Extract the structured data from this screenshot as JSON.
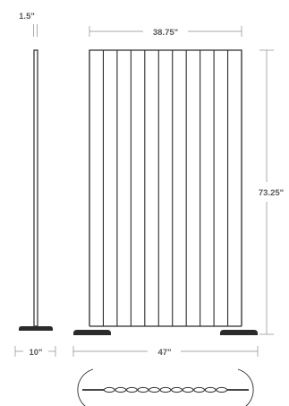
{
  "dimensions": {
    "thickness": "1.5\"",
    "inner_width": "38.75\"",
    "height": "73.25\"",
    "base_depth": "10\"",
    "overall_width": "47\""
  },
  "panel": {
    "bar_count": 11
  },
  "colors": {
    "ink": "#2b2b2b",
    "dimension_line": "#8a8a8a",
    "label": "#5a5a5a"
  }
}
